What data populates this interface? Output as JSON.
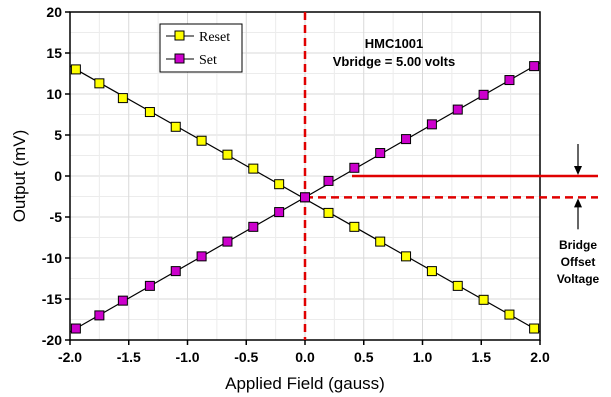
{
  "chart_data": {
    "type": "line",
    "title": "",
    "xlabel": "Applied Field (gauss)",
    "ylabel": "Output (mV)",
    "xlim": [
      -2.0,
      2.0
    ],
    "ylim": [
      -20,
      20
    ],
    "xticks": [
      "-2.0",
      "-1.5",
      "-1.0",
      "-0.5",
      "0.0",
      "0.5",
      "1.0",
      "1.5",
      "2.0"
    ],
    "yticks": [
      "20",
      "15",
      "10",
      "5",
      "0",
      "-5",
      "-10",
      "-15",
      "-20"
    ],
    "grid": true,
    "legend_position": "top-left",
    "series": [
      {
        "name": "Reset",
        "color": "#ffff00",
        "x": [
          -1.95,
          -1.75,
          -1.55,
          -1.32,
          -1.1,
          -0.88,
          -0.66,
          -0.44,
          -0.22,
          0.0,
          0.2,
          0.42,
          0.64,
          0.86,
          1.08,
          1.3,
          1.52,
          1.74,
          1.95
        ],
        "y": [
          13.0,
          11.3,
          9.5,
          7.8,
          6.0,
          4.3,
          2.6,
          0.9,
          -1.0,
          -2.6,
          -4.5,
          -6.2,
          -8.0,
          -9.8,
          -11.6,
          -13.4,
          -15.1,
          -16.9,
          -18.6
        ]
      },
      {
        "name": "Set",
        "color": "#cc00cc",
        "x": [
          -1.95,
          -1.75,
          -1.55,
          -1.32,
          -1.1,
          -0.88,
          -0.66,
          -0.44,
          -0.22,
          0.0,
          0.2,
          0.42,
          0.64,
          0.86,
          1.08,
          1.3,
          1.52,
          1.74,
          1.95
        ],
        "y": [
          -18.6,
          -17.0,
          -15.2,
          -13.4,
          -11.6,
          -9.8,
          -8.0,
          -6.2,
          -4.4,
          -2.6,
          -0.6,
          1.0,
          2.8,
          4.5,
          6.3,
          8.1,
          9.9,
          11.7,
          13.4
        ]
      }
    ],
    "annotations": {
      "device": "HMC1001",
      "vbridge": "Vbridge = 5.00 volts",
      "offset_label": [
        "Bridge",
        "Offset",
        "Voltage"
      ],
      "offset_value": -2.6,
      "zero_value": 0,
      "vertical_marker_x": 0.0,
      "ref_line_start_x": 0.4
    },
    "colors": {
      "marker_line": "#e00000",
      "fit_line": "#000000",
      "grid": "#d9d9d9"
    }
  }
}
